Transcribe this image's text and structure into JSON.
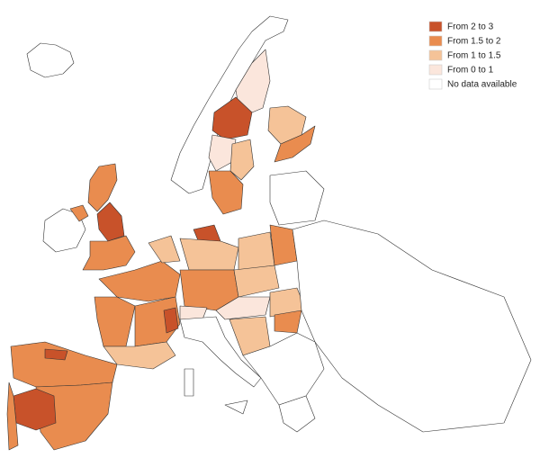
{
  "legend": {
    "items": [
      {
        "label": "From 2 to 3",
        "color": "#c8522a"
      },
      {
        "label": "From 1.5 to 2",
        "color": "#e98c4f"
      },
      {
        "label": "From 1 to 1.5",
        "color": "#f5c398"
      },
      {
        "label": "From 0 to 1",
        "color": "#fbe6dc"
      },
      {
        "label": "No data available",
        "color": "#ffffff"
      }
    ]
  }
}
